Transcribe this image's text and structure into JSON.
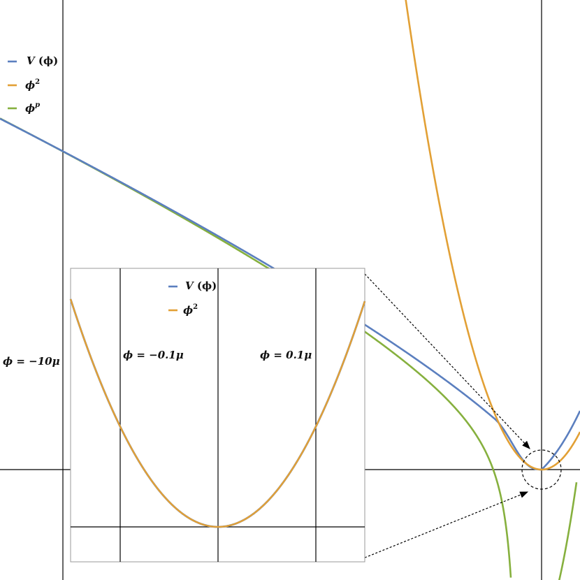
{
  "colors": {
    "V": "#5b7fbf",
    "phi2": "#e2a035",
    "phip": "#86b03e",
    "axis": "#000000",
    "inset_border": "#9a9a9a"
  },
  "chart_data": [
    {
      "type": "line",
      "role": "main",
      "series": [
        {
          "name": "V (ϕ)",
          "color": "#5b7fbf"
        },
        {
          "name": "ϕ²",
          "color": "#e2a035"
        },
        {
          "name": "ϕᵖ",
          "color": "#86b03e"
        }
      ],
      "legend": {
        "placement": "top-left",
        "entries": [
          {
            "sym": "V",
            "rest": " (ϕ)",
            "sup": ""
          },
          {
            "sym": "ϕ",
            "rest": "",
            "sup": "2"
          },
          {
            "sym": "ϕ",
            "rest": "",
            "sup": "p"
          }
        ]
      },
      "annotations": [
        {
          "text": "ϕ = −10μ"
        }
      ],
      "grid": false
    },
    {
      "type": "line",
      "role": "inset",
      "series": [
        {
          "name": "V (ϕ)",
          "color": "#5b7fbf"
        },
        {
          "name": "ϕ²",
          "color": "#e2a035"
        }
      ],
      "legend": {
        "placement": "top",
        "entries": [
          {
            "sym": "V",
            "rest": " (ϕ)",
            "sup": ""
          },
          {
            "sym": "ϕ",
            "rest": "",
            "sup": "2"
          }
        ]
      },
      "annotations": [
        {
          "text": "ϕ = −0.1μ"
        },
        {
          "text": "ϕ = 0.1μ"
        }
      ],
      "grid": false
    }
  ]
}
